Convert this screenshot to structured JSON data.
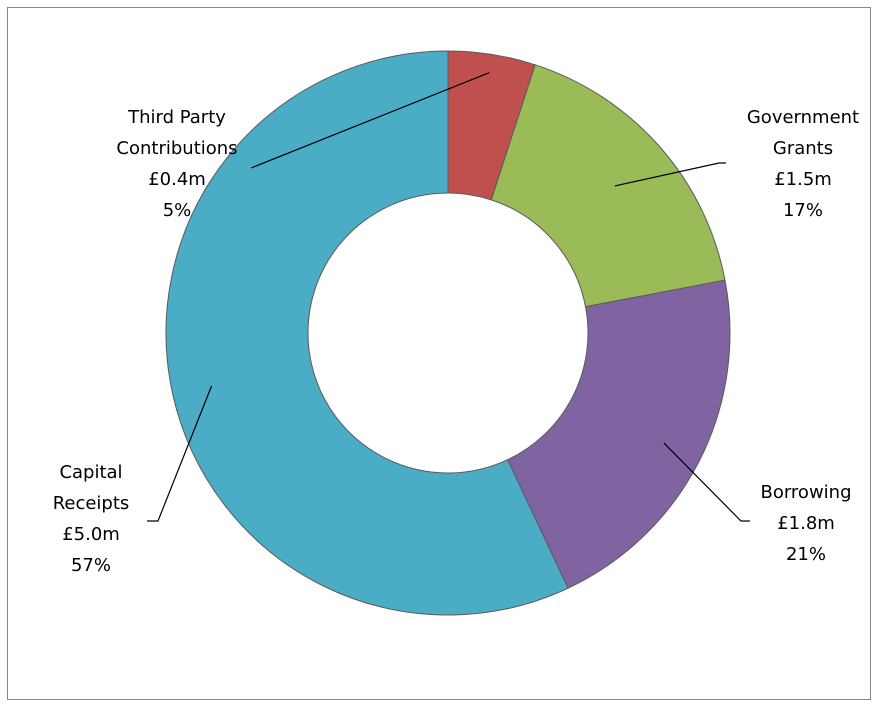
{
  "chart_data": {
    "type": "pie",
    "variant": "donut",
    "title": "",
    "currency": "£",
    "slices": [
      {
        "name": "Third Party Contributions",
        "name_lines": [
          "Third Party",
          "Contributions"
        ],
        "value_label": "£0.4m",
        "value": 0.4,
        "percent_label": "5%",
        "percent": 5,
        "color": "#C0504D"
      },
      {
        "name": "Government Grants",
        "name_lines": [
          "Government",
          "Grants"
        ],
        "value_label": "£1.5m",
        "value": 1.5,
        "percent_label": "17%",
        "percent": 17,
        "color": "#9BBB59"
      },
      {
        "name": "Borrowing",
        "name_lines": [
          "Borrowing"
        ],
        "value_label": "£1.8m",
        "value": 1.8,
        "percent_label": "21%",
        "percent": 21,
        "color": "#8064A2"
      },
      {
        "name": "Capital Receipts",
        "name_lines": [
          "Capital",
          "Receipts"
        ],
        "value_label": "£5.0m",
        "value": 5.0,
        "percent_label": "57%",
        "percent": 57,
        "color": "#4BACC6"
      }
    ],
    "legend": "none",
    "labels": "outside with leader lines"
  }
}
